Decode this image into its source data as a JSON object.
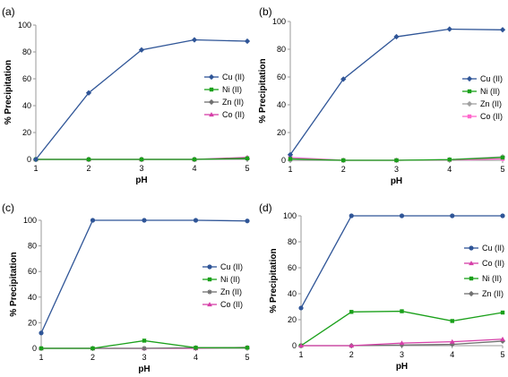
{
  "chart_data": [
    {
      "type": "line",
      "panel_label": "(a)",
      "xlabel": "pH",
      "ylabel": "% Precipitation",
      "x": [
        1,
        2,
        3,
        4,
        5
      ],
      "xlim": [
        1,
        5
      ],
      "ylim": [
        0,
        100
      ],
      "yticks": [
        0,
        20,
        40,
        60,
        80,
        100
      ],
      "grid": false,
      "legend": "right",
      "series": [
        {
          "name": "Cu (II)",
          "color": "#2f5597",
          "marker": "diamond",
          "values": [
            0,
            49.5,
            81.5,
            89,
            88
          ]
        },
        {
          "name": "Ni (II)",
          "color": "#1aa01a",
          "marker": "square",
          "values": [
            0,
            0,
            0,
            0,
            0.8
          ]
        },
        {
          "name": "Zn (II)",
          "color": "#707070",
          "marker": "diamond",
          "values": [
            0,
            0,
            0,
            0,
            0.5
          ]
        },
        {
          "name": "Co (II)",
          "color": "#d63fa8",
          "marker": "triangle",
          "values": [
            0,
            0,
            0,
            0,
            1.5
          ]
        }
      ]
    },
    {
      "type": "line",
      "panel_label": "(b)",
      "xlabel": "pH",
      "ylabel": "% Precipitation",
      "x": [
        1,
        2,
        3,
        4,
        5
      ],
      "xlim": [
        1,
        5
      ],
      "ylim": [
        0,
        100
      ],
      "yticks": [
        0,
        20,
        40,
        60,
        80,
        100
      ],
      "grid": false,
      "legend": "right",
      "series": [
        {
          "name": "Cu (II)",
          "color": "#2f5597",
          "marker": "diamond",
          "values": [
            4,
            58.5,
            89,
            94.5,
            94
          ]
        },
        {
          "name": "Ni (II)",
          "color": "#1aa01a",
          "marker": "square",
          "values": [
            1,
            0,
            0,
            0.5,
            2
          ]
        },
        {
          "name": "Zn (II)",
          "color": "#a0a0a0",
          "marker": "diamond",
          "values": [
            0,
            0,
            0,
            0.5,
            2.5
          ]
        },
        {
          "name": "Co (II)",
          "color": "#ff66cc",
          "marker": "square",
          "values": [
            2,
            0,
            0,
            0.3,
            1
          ]
        }
      ]
    },
    {
      "type": "line",
      "panel_label": "(c)",
      "xlabel": "pH",
      "ylabel": "% Precipitation",
      "x": [
        1,
        2,
        3,
        4,
        5
      ],
      "xlim": [
        1,
        5
      ],
      "ylim": [
        0,
        100
      ],
      "yticks": [
        0,
        20,
        40,
        60,
        80,
        100
      ],
      "grid": false,
      "legend": "right",
      "series": [
        {
          "name": "Cu (II)",
          "color": "#2f5597",
          "marker": "circle",
          "values": [
            12,
            100,
            100,
            100,
            99.5
          ]
        },
        {
          "name": "Ni (II)",
          "color": "#1aa01a",
          "marker": "square",
          "values": [
            0,
            0,
            6,
            0.5,
            0.5
          ]
        },
        {
          "name": "Zn (II)",
          "color": "#707070",
          "marker": "star",
          "values": [
            0,
            0,
            0,
            0.5,
            0.5
          ]
        },
        {
          "name": "Co (II)",
          "color": "#d63fa8",
          "marker": "triangle",
          "values": [
            0,
            0,
            0,
            0,
            0.8
          ]
        }
      ]
    },
    {
      "type": "line",
      "panel_label": "(d)",
      "xlabel": "pH",
      "ylabel": "% Precipitation",
      "x": [
        1,
        2,
        3,
        4,
        5
      ],
      "xlim": [
        1,
        5
      ],
      "ylim": [
        0,
        100
      ],
      "yticks": [
        0,
        20,
        40,
        60,
        80,
        100
      ],
      "grid": false,
      "legend": "right",
      "series": [
        {
          "name": "Cu (II)",
          "color": "#2f5597",
          "marker": "circle",
          "values": [
            29,
            100,
            100,
            100,
            100
          ]
        },
        {
          "name": "Co (II)",
          "color": "#d63fa8",
          "marker": "triangle",
          "values": [
            0,
            0,
            2,
            3,
            5
          ]
        },
        {
          "name": "Ni (II)",
          "color": "#1aa01a",
          "marker": "square",
          "values": [
            0,
            26,
            26.5,
            19,
            25.5
          ]
        },
        {
          "name": "Zn (II)",
          "color": "#707070",
          "marker": "diamond",
          "values": [
            0,
            0,
            0.5,
            1,
            3.5
          ]
        }
      ]
    }
  ]
}
